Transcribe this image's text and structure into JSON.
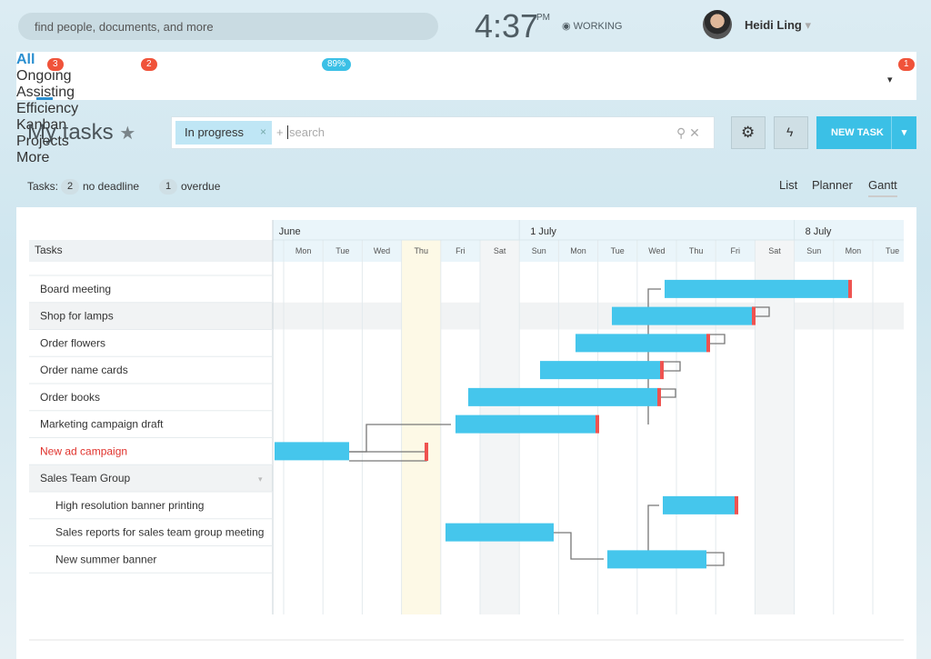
{
  "top_bar": {
    "search_placeholder": "find people, documents, and more",
    "time": "4:37",
    "time_suffix": "PM",
    "status": "WORKING",
    "user_name": "Heidi Ling"
  },
  "tabs": [
    {
      "label": "All",
      "badge": 3
    },
    {
      "label": "Ongoing",
      "badge": 2
    },
    {
      "label": "Assisting"
    },
    {
      "label": "Efficiency",
      "badge": "89%"
    },
    {
      "label": "Kanban"
    },
    {
      "label": "Projects"
    },
    {
      "label": "More",
      "badge": 1
    }
  ],
  "page_title": "My tasks",
  "filter_tag": "In progress",
  "add_filter_symbol": "+",
  "search_placeholder": "search",
  "new_task_button": "NEW TASK",
  "counters": {
    "label": "Tasks:",
    "no_deadline_count": 2,
    "no_deadline_label": "no deadline",
    "overdue_count": 1,
    "overdue_label": "overdue"
  },
  "views": [
    "List",
    "Planner",
    "Gantt"
  ],
  "gantt": {
    "tasks_header": "Tasks",
    "weeks": [
      "June",
      "1 July",
      "8 July"
    ],
    "days": [
      "Mon",
      "Tue",
      "Wed",
      "Thu",
      "Fri",
      "Sat",
      "Sun",
      "Mon",
      "Tue",
      "Wed",
      "Thu",
      "Fri",
      "Sat",
      "Sun",
      "Mon",
      "Tue"
    ],
    "tasks": [
      {
        "name": "Board meeting"
      },
      {
        "name": "Shop for lamps"
      },
      {
        "name": "Order flowers"
      },
      {
        "name": "Order name cards"
      },
      {
        "name": "Order books"
      },
      {
        "name": "Marketing campaign draft"
      },
      {
        "name": "New ad campaign",
        "overdue": true
      },
      {
        "name": "Sales Team Group",
        "group": true
      },
      {
        "name": "High resolution banner printing",
        "subtask": true
      },
      {
        "name": "Sales reports for sales team group meeting",
        "subtask": true
      },
      {
        "name": "New summer banner",
        "subtask": true
      }
    ]
  }
}
